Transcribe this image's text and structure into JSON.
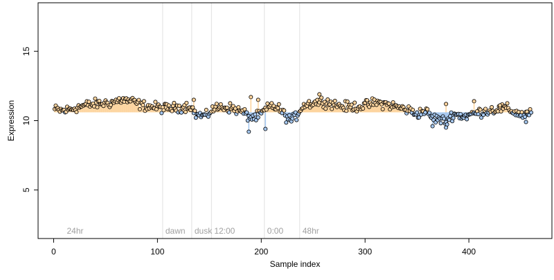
{
  "chart_data": {
    "type": "scatter",
    "title": "",
    "xlabel": "Sample index",
    "ylabel": "Expression",
    "xlim": [
      -15,
      480
    ],
    "ylim": [
      1.5,
      18.5
    ],
    "x_ticks": [
      0,
      100,
      200,
      300,
      400
    ],
    "y_ticks": [
      5,
      10,
      15
    ],
    "baseline": 10.6,
    "grid": false,
    "colors": {
      "above": "#fdd49e",
      "below": "#a6c8f0",
      "point_edge": "#000000",
      "marker_line": "#e0e0e0",
      "marker_text": "#a0a0a0"
    },
    "markers": [
      {
        "x": 10,
        "label": "24hr"
      },
      {
        "x": 105,
        "label": "dawn"
      },
      {
        "x": 133,
        "label": "dusk"
      },
      {
        "x": 152,
        "label": "12:00"
      },
      {
        "x": 203,
        "label": "0:00"
      },
      {
        "x": 237,
        "label": "48hr"
      }
    ],
    "trend": [
      [
        1,
        10.8
      ],
      [
        10,
        10.7
      ],
      [
        20,
        10.9
      ],
      [
        30,
        11.1
      ],
      [
        40,
        11.2
      ],
      [
        55,
        11.3
      ],
      [
        65,
        11.5
      ],
      [
        75,
        11.4
      ],
      [
        85,
        11.1
      ],
      [
        95,
        11.0
      ],
      [
        105,
        10.9
      ],
      [
        115,
        10.9
      ],
      [
        125,
        11.0
      ],
      [
        132,
        11.1
      ],
      [
        136,
        10.5
      ],
      [
        140,
        10.4
      ],
      [
        147,
        10.3
      ],
      [
        152,
        10.8
      ],
      [
        162,
        11.0
      ],
      [
        172,
        10.9
      ],
      [
        182,
        10.6
      ],
      [
        190,
        10.2
      ],
      [
        197,
        10.3
      ],
      [
        203,
        10.7
      ],
      [
        210,
        11.1
      ],
      [
        218,
        10.8
      ],
      [
        225,
        10.2
      ],
      [
        230,
        10.0
      ],
      [
        234,
        10.4
      ],
      [
        240,
        11.1
      ],
      [
        250,
        11.3
      ],
      [
        260,
        11.4
      ],
      [
        270,
        11.2
      ],
      [
        280,
        11.0
      ],
      [
        290,
        11.0
      ],
      [
        300,
        11.1
      ],
      [
        310,
        11.3
      ],
      [
        320,
        11.2
      ],
      [
        330,
        11.0
      ],
      [
        340,
        10.8
      ],
      [
        350,
        10.5
      ],
      [
        358,
        10.7
      ],
      [
        365,
        10.2
      ],
      [
        372,
        10.1
      ],
      [
        378,
        9.9
      ],
      [
        385,
        10.5
      ],
      [
        395,
        10.3
      ],
      [
        405,
        10.5
      ],
      [
        415,
        10.7
      ],
      [
        425,
        10.8
      ],
      [
        435,
        10.9
      ],
      [
        445,
        10.6
      ],
      [
        452,
        10.4
      ],
      [
        460,
        10.6
      ]
    ],
    "n_points": 460,
    "series": [
      {
        "name": "",
        "values": [
          [
            188,
            9.2
          ],
          [
            204,
            9.4
          ],
          [
            190,
            11.7
          ],
          [
            197,
            11.5
          ],
          [
            256,
            11.9
          ],
          [
            378,
            11.2
          ],
          [
            365,
            9.6
          ],
          [
            378,
            9.5
          ],
          [
            455,
            9.9
          ],
          [
            430,
            11.1
          ],
          [
            405,
            11.4
          ],
          [
            135,
            11.5
          ]
        ]
      }
    ]
  }
}
